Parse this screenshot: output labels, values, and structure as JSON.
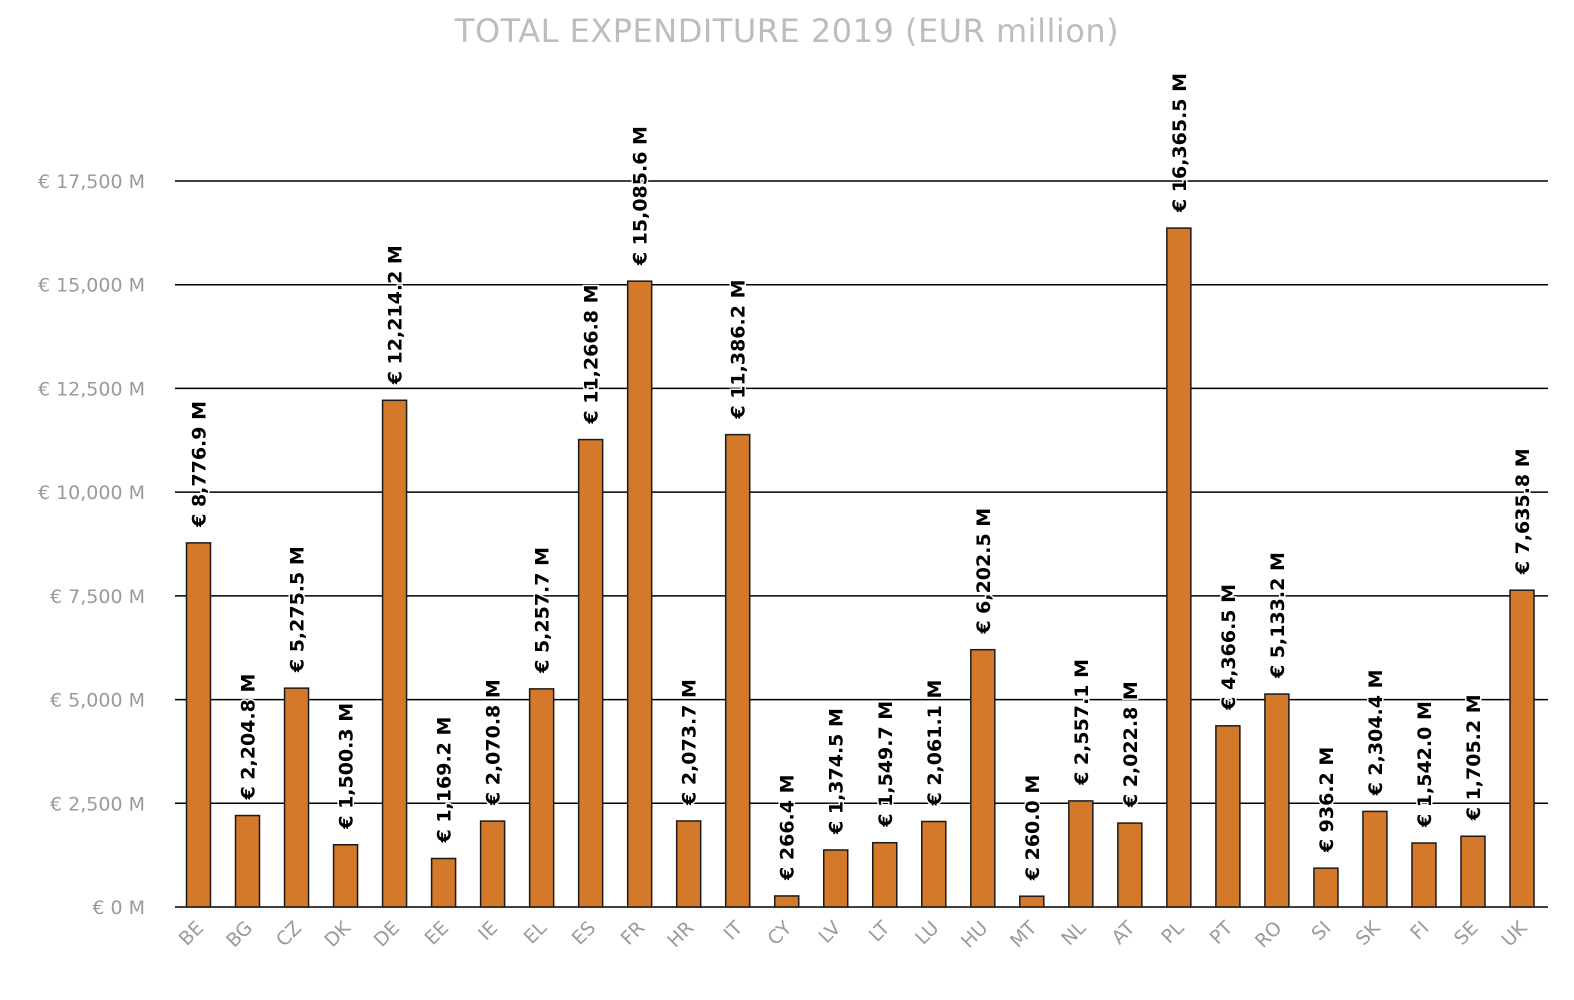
{
  "chart_data": {
    "type": "bar",
    "title": "TOTAL EXPENDITURE 2019 (EUR million)",
    "xlabel": "",
    "ylabel": "",
    "ylim": [
      0,
      17500
    ],
    "yticks": [
      0,
      2500,
      5000,
      7500,
      10000,
      12500,
      15000,
      17500
    ],
    "ytick_labels": [
      "€ 0 M",
      "€ 2,500 M",
      "€ 5,000 M",
      "€ 7,500 M",
      "€ 10,000 M",
      "€ 12,500 M",
      "€ 15,000 M",
      "€ 17,500 M"
    ],
    "grid": true,
    "legend": "none",
    "bar_color": "#D4782A",
    "categories": [
      "BE",
      "BG",
      "CZ",
      "DK",
      "DE",
      "EE",
      "IE",
      "EL",
      "ES",
      "FR",
      "HR",
      "IT",
      "CY",
      "LV",
      "LT",
      "LU",
      "HU",
      "MT",
      "NL",
      "AT",
      "PL",
      "PT",
      "RO",
      "SI",
      "SK",
      "FI",
      "SE",
      "UK"
    ],
    "values": [
      8776.9,
      2204.8,
      5275.5,
      1500.3,
      12214.2,
      1169.2,
      2070.8,
      5257.7,
      11266.8,
      15085.6,
      2073.7,
      11386.2,
      266.4,
      1374.5,
      1549.7,
      2061.1,
      6202.5,
      260.0,
      2557.1,
      2022.8,
      16365.5,
      4366.5,
      5133.2,
      936.2,
      2304.4,
      1542.0,
      1705.2,
      7635.8
    ],
    "data_labels": [
      "€ 8,776.9 M",
      "€ 2,204.8 M",
      "€ 5,275.5 M",
      "€ 1,500.3 M",
      "€ 12,214.2 M",
      "€ 1,169.2 M",
      "€ 2,070.8 M",
      "€ 5,257.7 M",
      "€ 11,266.8 M",
      "€ 15,085.6 M",
      "€ 2,073.7 M",
      "€ 11,386.2 M",
      "€ 266.4 M",
      "€ 1,374.5 M",
      "€ 1,549.7 M",
      "€ 2,061.1 M",
      "€ 6,202.5 M",
      "€ 260.0 M",
      "€ 2,557.1 M",
      "€ 2,022.8 M",
      "€ 16,365.5 M",
      "€ 4,366.5 M",
      "€ 5,133.2 M",
      "€ 936.2 M",
      "€ 2,304.4 M",
      "€ 1,542.0 M",
      "€ 1,705.2 M",
      "€ 7,635.8 M"
    ]
  }
}
